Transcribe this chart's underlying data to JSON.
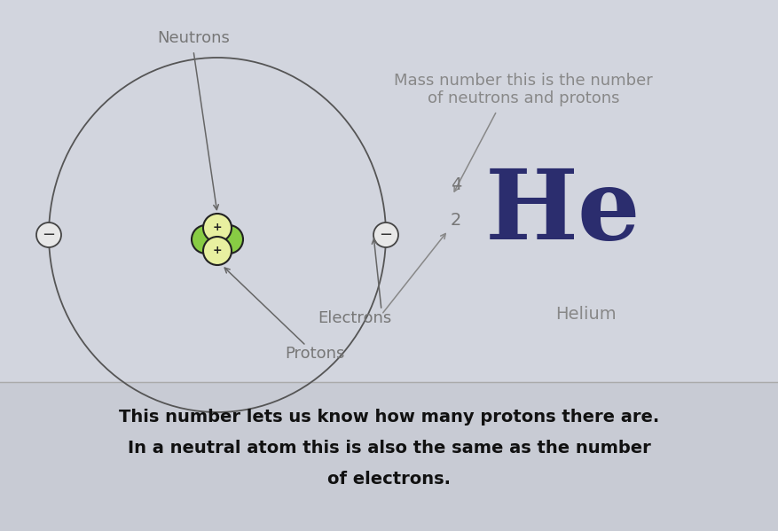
{
  "bg_color": "#d2d5de",
  "bg_bottom_color": "#c8cbd4",
  "text_color_dark": "#111111",
  "text_color_gray": "#888888",
  "text_color_blue": "#2b2d6e",
  "element_symbol": "He",
  "element_name": "Helium",
  "mass_number": "4",
  "atomic_number": "2",
  "label_neutrons": "Neutrons",
  "label_electrons": "Electrons",
  "label_protons": "Protons",
  "label_mass_line1": "Mass number this is the number",
  "label_mass_line2": "of neutrons and protons",
  "bottom_text_line1": "This number lets us know how many protons there are.",
  "bottom_text_line2": "In a neutral atom this is also the same as the number",
  "bottom_text_line3": "of electrons.",
  "proton_color": "#e8f0a0",
  "proton_outline": "#222222",
  "neutron_color": "#88cc44",
  "neutron_outline": "#222222",
  "electron_color": "#e8e8e8",
  "electron_outline": "#444444",
  "line_color": "#666666",
  "sep_color": "#aaaaaa"
}
